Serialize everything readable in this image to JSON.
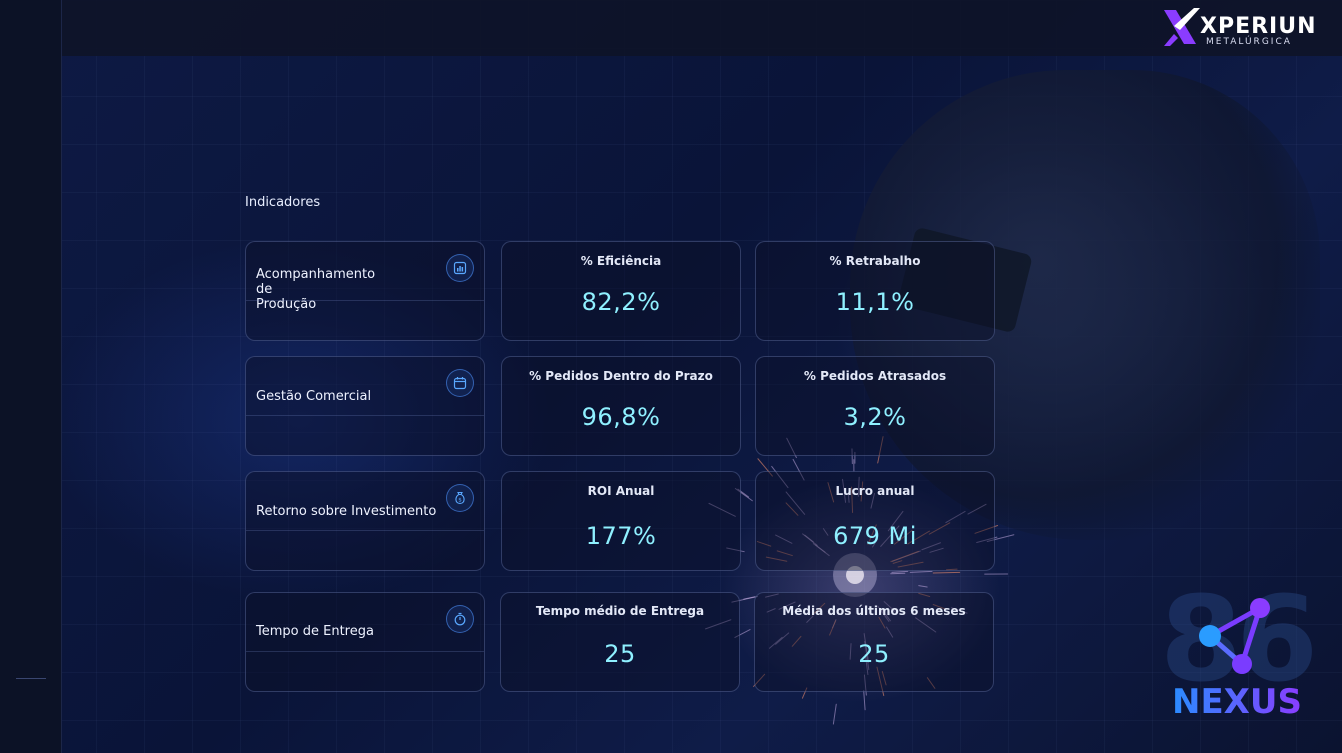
{
  "brand": {
    "name": "XPERIUN",
    "sub": "METALÚRGICA",
    "accent": "#8a3cff"
  },
  "section": {
    "title": "Indicadores"
  },
  "categories": [
    {
      "label": "Acompanhamento\nde\nProdução",
      "icon": "bar-chart-icon"
    },
    {
      "label": "Gestão Comercial",
      "icon": "calendar-icon"
    },
    {
      "label": "Retorno sobre Investimento",
      "icon": "money-bag-icon"
    },
    {
      "label": "Tempo de Entrega",
      "icon": "stopwatch-icon"
    }
  ],
  "kpis": [
    [
      {
        "label": "% Eficiência",
        "value": "82,2%"
      },
      {
        "label": "% Retrabalho",
        "value": "11,1%"
      }
    ],
    [
      {
        "label": "% Pedidos Dentro do Prazo",
        "value": "96,8%"
      },
      {
        "label": "% Pedidos Atrasados",
        "value": "3,2%"
      }
    ],
    [
      {
        "label": "ROI Anual",
        "value": "177%"
      },
      {
        "label": "Lucro anual",
        "value": "679 Mi"
      }
    ],
    [
      {
        "label": "Tempo médio de Entrega",
        "value": "25"
      },
      {
        "label": "Média dos últimos 6 meses",
        "value": "25"
      }
    ]
  ],
  "nexus": {
    "word": "NEXUS",
    "number": "86"
  },
  "colors": {
    "kpi_value": "#8ff0ff",
    "background": "#0b1230",
    "icon_ring": "#3c8cff"
  }
}
